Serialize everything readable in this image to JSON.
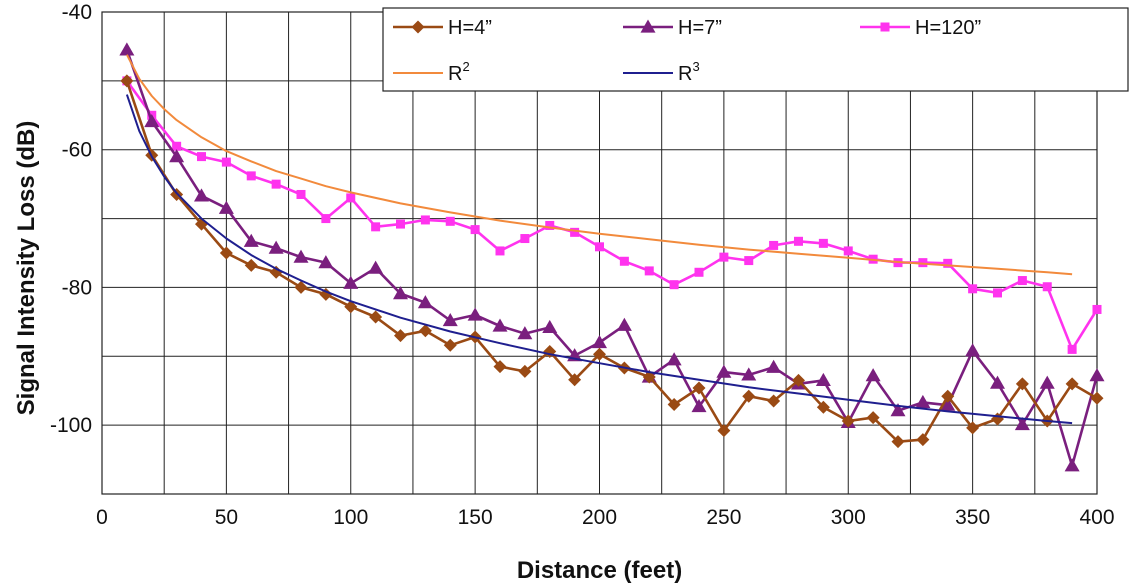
{
  "chart_data": {
    "type": "line",
    "title": "",
    "xlabel": "Distance (feet)",
    "ylabel": "Signal Intensity  Loss (dB)",
    "xlim": [
      0,
      400
    ],
    "ylim": [
      -110,
      -40
    ],
    "xticks": [
      0,
      50,
      100,
      150,
      200,
      250,
      300,
      350,
      400
    ],
    "yticks": [
      -40,
      -60,
      -80,
      -100
    ],
    "grid": true,
    "legend_position": "top-right",
    "series": [
      {
        "name": "H=4”",
        "color": "#9a4a14",
        "marker": "diamond",
        "x": [
          10,
          20,
          30,
          40,
          50,
          60,
          70,
          80,
          90,
          100,
          110,
          120,
          130,
          140,
          150,
          160,
          170,
          180,
          190,
          200,
          210,
          220,
          230,
          240,
          250,
          260,
          270,
          280,
          290,
          300,
          310,
          320,
          330,
          340,
          350,
          360,
          370,
          380,
          390,
          400
        ],
        "y": [
          -50,
          -60.8,
          -66.5,
          -70.8,
          -75,
          -76.8,
          -77.8,
          -80,
          -81,
          -82.8,
          -84.3,
          -87,
          -86.3,
          -88.4,
          -87.2,
          -91.5,
          -92.2,
          -89.3,
          -93.4,
          -89.7,
          -91.7,
          -93,
          -97,
          -94.6,
          -100.8,
          -95.8,
          -96.5,
          -93.5,
          -97.4,
          -99.4,
          -98.9,
          -102.4,
          -102.1,
          -95.8,
          -100.4,
          -99.1,
          -94,
          -99.4,
          -94,
          -96.1
        ]
      },
      {
        "name": "H=7”",
        "color": "#7a1f7e",
        "marker": "triangle",
        "x": [
          10,
          20,
          30,
          40,
          50,
          60,
          70,
          80,
          90,
          100,
          110,
          120,
          130,
          140,
          150,
          160,
          170,
          180,
          190,
          200,
          210,
          220,
          230,
          240,
          250,
          260,
          270,
          280,
          290,
          300,
          310,
          320,
          330,
          340,
          350,
          360,
          370,
          380,
          390,
          400
        ],
        "y": [
          -45.5,
          -55.9,
          -61,
          -66.7,
          -68.5,
          -73.3,
          -74.3,
          -75.6,
          -76.4,
          -79.4,
          -77.2,
          -80.9,
          -82.2,
          -84.8,
          -84,
          -85.6,
          -86.7,
          -85.8,
          -89.9,
          -88,
          -85.5,
          -93,
          -90.5,
          -97.3,
          -92.3,
          -92.7,
          -91.6,
          -94,
          -93.5,
          -99.6,
          -92.8,
          -97.9,
          -96.7,
          -97.1,
          -89.2,
          -93.9,
          -99.9,
          -93.9,
          -105.9,
          -92.8
        ]
      },
      {
        "name": "H=120”",
        "color": "#ff33ee",
        "marker": "square",
        "x": [
          10,
          20,
          30,
          40,
          50,
          60,
          70,
          80,
          90,
          100,
          110,
          120,
          130,
          140,
          150,
          160,
          170,
          180,
          190,
          200,
          210,
          220,
          230,
          240,
          250,
          260,
          270,
          280,
          290,
          300,
          310,
          320,
          330,
          340,
          350,
          360,
          370,
          380,
          390,
          400
        ],
        "y": [
          -50,
          -55,
          -59.5,
          -61,
          -61.8,
          -63.8,
          -65,
          -66.5,
          -70,
          -67,
          -71.2,
          -70.8,
          -70.2,
          -70.4,
          -71.6,
          -74.7,
          -72.9,
          -71,
          -72,
          -74.1,
          -76.2,
          -77.6,
          -79.6,
          -77.8,
          -75.6,
          -76.1,
          -73.9,
          -73.3,
          -73.6,
          -74.7,
          -75.9,
          -76.4,
          -76.4,
          -76.5,
          -80.2,
          -80.8,
          -79,
          -79.9,
          -89,
          -83.2
        ]
      },
      {
        "name": "R",
        "exponent": "2",
        "color": "#f28a3c",
        "marker": "none",
        "x": [
          10,
          15,
          20,
          25,
          30,
          40,
          50,
          60,
          70,
          80,
          90,
          100,
          120,
          140,
          160,
          180,
          200,
          220,
          240,
          260,
          280,
          300,
          320,
          340,
          360,
          380,
          390
        ],
        "y": [
          -46.2,
          -49.7,
          -52.2,
          -54.1,
          -55.7,
          -58.2,
          -60.2,
          -61.7,
          -63.1,
          -64.2,
          -65.3,
          -66.2,
          -67.8,
          -69.1,
          -70.3,
          -71.3,
          -72.2,
          -73.0,
          -73.8,
          -74.5,
          -75.1,
          -75.7,
          -76.3,
          -76.8,
          -77.3,
          -77.8,
          -78.1
        ]
      },
      {
        "name": "R",
        "exponent": "3",
        "color": "#1f1f8f",
        "marker": "none",
        "x": [
          10,
          15,
          20,
          25,
          30,
          40,
          50,
          60,
          70,
          80,
          90,
          100,
          120,
          140,
          160,
          180,
          200,
          220,
          240,
          260,
          280,
          300,
          320,
          340,
          360,
          380,
          390
        ],
        "y": [
          -52,
          -57.3,
          -61,
          -63.9,
          -66.3,
          -70,
          -72.9,
          -75.3,
          -77.3,
          -79,
          -80.6,
          -82,
          -84.4,
          -86.4,
          -88.1,
          -89.7,
          -91,
          -92.3,
          -93.4,
          -94.5,
          -95.4,
          -96.3,
          -97.2,
          -98,
          -98.7,
          -99.4,
          -99.7
        ]
      }
    ]
  }
}
